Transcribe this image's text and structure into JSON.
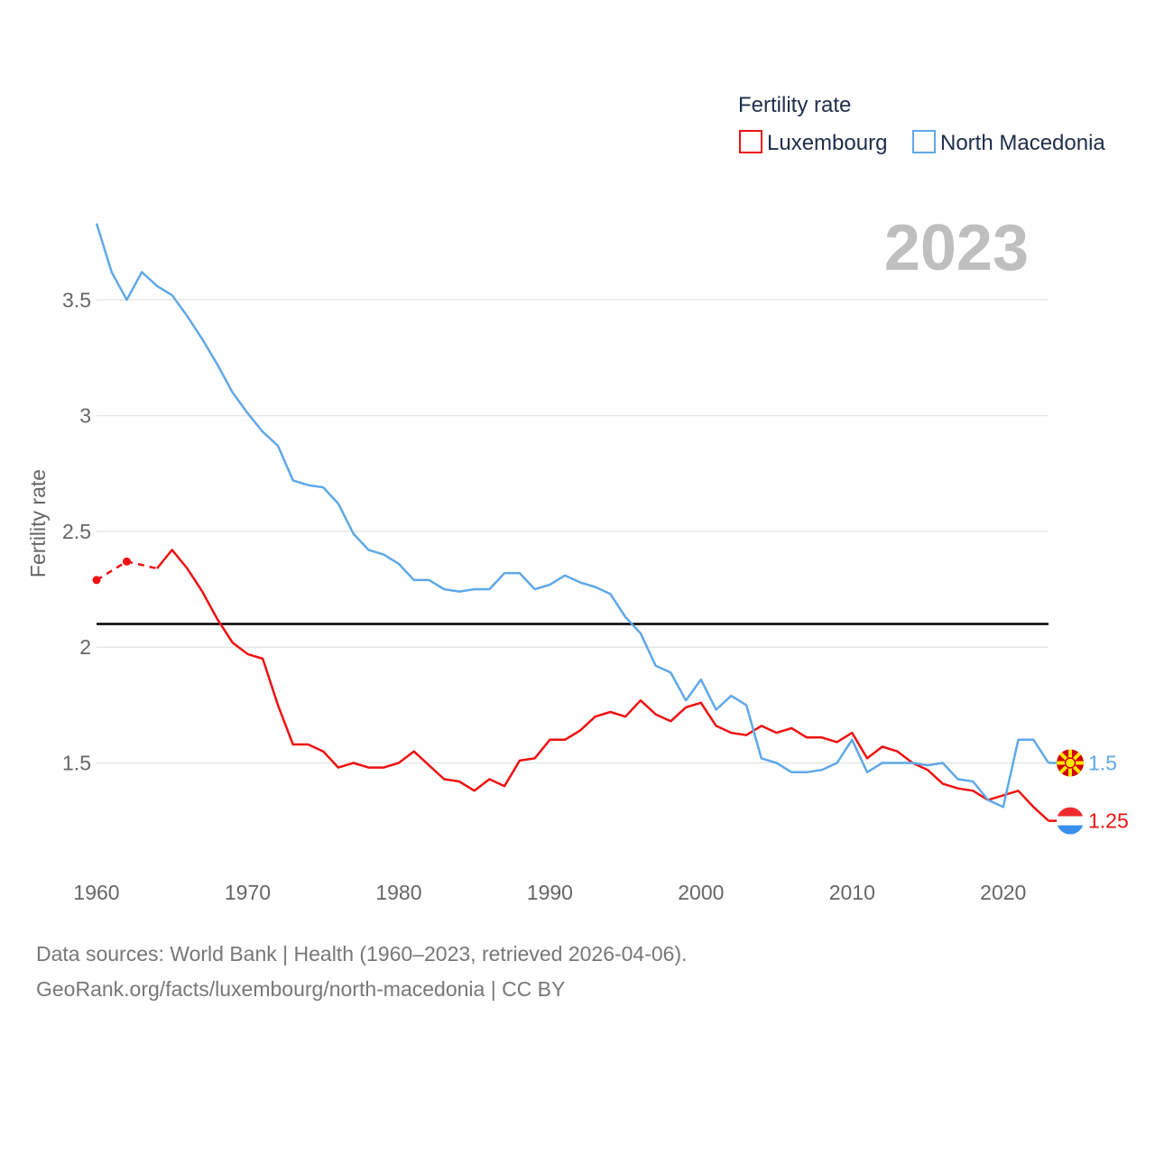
{
  "chart_data": {
    "type": "line",
    "legend_title": "Fertility rate",
    "ylabel": "Fertility rate",
    "watermark_year": "2023",
    "xlim": [
      1960,
      2023
    ],
    "ylim": [
      1.05,
      3.85
    ],
    "x_ticks": [
      1960,
      1970,
      1980,
      1990,
      2000,
      2010,
      2020
    ],
    "y_ticks": [
      1.5,
      2,
      2.5,
      3,
      3.5
    ],
    "y_tick_labels": [
      "1.5",
      "2",
      "2.5",
      "3",
      "3.5"
    ],
    "reference_line": 2.1,
    "series": [
      {
        "name": "Luxembourg",
        "color": "#ee1111",
        "end_label": "1.25",
        "estimated": [
          [
            1960,
            2.29
          ],
          [
            1962,
            2.37
          ],
          [
            1964,
            2.34
          ]
        ],
        "points": [
          [
            1964,
            2.34
          ],
          [
            1965,
            2.42
          ],
          [
            1966,
            2.34
          ],
          [
            1967,
            2.24
          ],
          [
            1968,
            2.12
          ],
          [
            1969,
            2.02
          ],
          [
            1970,
            1.97
          ],
          [
            1971,
            1.95
          ],
          [
            1972,
            1.75
          ],
          [
            1973,
            1.58
          ],
          [
            1974,
            1.58
          ],
          [
            1975,
            1.55
          ],
          [
            1976,
            1.48
          ],
          [
            1977,
            1.5
          ],
          [
            1978,
            1.48
          ],
          [
            1979,
            1.48
          ],
          [
            1980,
            1.5
          ],
          [
            1981,
            1.55
          ],
          [
            1982,
            1.49
          ],
          [
            1983,
            1.43
          ],
          [
            1984,
            1.42
          ],
          [
            1985,
            1.38
          ],
          [
            1986,
            1.43
          ],
          [
            1987,
            1.4
          ],
          [
            1988,
            1.51
          ],
          [
            1989,
            1.52
          ],
          [
            1990,
            1.6
          ],
          [
            1991,
            1.6
          ],
          [
            1992,
            1.64
          ],
          [
            1993,
            1.7
          ],
          [
            1994,
            1.72
          ],
          [
            1995,
            1.7
          ],
          [
            1996,
            1.77
          ],
          [
            1997,
            1.71
          ],
          [
            1998,
            1.68
          ],
          [
            1999,
            1.74
          ],
          [
            2000,
            1.76
          ],
          [
            2001,
            1.66
          ],
          [
            2002,
            1.63
          ],
          [
            2003,
            1.62
          ],
          [
            2004,
            1.66
          ],
          [
            2005,
            1.63
          ],
          [
            2006,
            1.65
          ],
          [
            2007,
            1.61
          ],
          [
            2008,
            1.61
          ],
          [
            2009,
            1.59
          ],
          [
            2010,
            1.63
          ],
          [
            2011,
            1.52
          ],
          [
            2012,
            1.57
          ],
          [
            2013,
            1.55
          ],
          [
            2014,
            1.5
          ],
          [
            2015,
            1.47
          ],
          [
            2016,
            1.41
          ],
          [
            2017,
            1.39
          ],
          [
            2018,
            1.38
          ],
          [
            2019,
            1.34
          ],
          [
            2020,
            1.36
          ],
          [
            2021,
            1.38
          ],
          [
            2022,
            1.31
          ],
          [
            2023,
            1.25
          ]
        ]
      },
      {
        "name": "North Macedonia",
        "color": "#5fa8e8",
        "end_label": "1.5",
        "points": [
          [
            1960,
            3.83
          ],
          [
            1961,
            3.62
          ],
          [
            1962,
            3.5
          ],
          [
            1963,
            3.62
          ],
          [
            1964,
            3.56
          ],
          [
            1965,
            3.52
          ],
          [
            1966,
            3.43
          ],
          [
            1967,
            3.33
          ],
          [
            1968,
            3.22
          ],
          [
            1969,
            3.1
          ],
          [
            1970,
            3.01
          ],
          [
            1971,
            2.93
          ],
          [
            1972,
            2.87
          ],
          [
            1973,
            2.72
          ],
          [
            1974,
            2.7
          ],
          [
            1975,
            2.69
          ],
          [
            1976,
            2.62
          ],
          [
            1977,
            2.49
          ],
          [
            1978,
            2.42
          ],
          [
            1979,
            2.4
          ],
          [
            1980,
            2.36
          ],
          [
            1981,
            2.29
          ],
          [
            1982,
            2.29
          ],
          [
            1983,
            2.25
          ],
          [
            1984,
            2.24
          ],
          [
            1985,
            2.25
          ],
          [
            1986,
            2.25
          ],
          [
            1987,
            2.32
          ],
          [
            1988,
            2.32
          ],
          [
            1989,
            2.25
          ],
          [
            1990,
            2.27
          ],
          [
            1991,
            2.31
          ],
          [
            1992,
            2.28
          ],
          [
            1993,
            2.26
          ],
          [
            1994,
            2.23
          ],
          [
            1995,
            2.13
          ],
          [
            1996,
            2.06
          ],
          [
            1997,
            1.92
          ],
          [
            1998,
            1.89
          ],
          [
            1999,
            1.77
          ],
          [
            2000,
            1.86
          ],
          [
            2001,
            1.73
          ],
          [
            2002,
            1.79
          ],
          [
            2003,
            1.75
          ],
          [
            2004,
            1.52
          ],
          [
            2005,
            1.5
          ],
          [
            2006,
            1.46
          ],
          [
            2007,
            1.46
          ],
          [
            2008,
            1.47
          ],
          [
            2009,
            1.5
          ],
          [
            2010,
            1.6
          ],
          [
            2011,
            1.46
          ],
          [
            2012,
            1.5
          ],
          [
            2013,
            1.5
          ],
          [
            2014,
            1.5
          ],
          [
            2015,
            1.49
          ],
          [
            2016,
            1.5
          ],
          [
            2017,
            1.43
          ],
          [
            2018,
            1.42
          ],
          [
            2019,
            1.34
          ],
          [
            2020,
            1.31
          ],
          [
            2021,
            1.6
          ],
          [
            2022,
            1.6
          ],
          [
            2023,
            1.5
          ]
        ]
      }
    ]
  },
  "source": {
    "line1": "Data sources: World Bank | Health (1960–2023, retrieved 2026-04-06).",
    "line2": "GeoRank.org/facts/luxembourg/north-macedonia | CC BY"
  }
}
